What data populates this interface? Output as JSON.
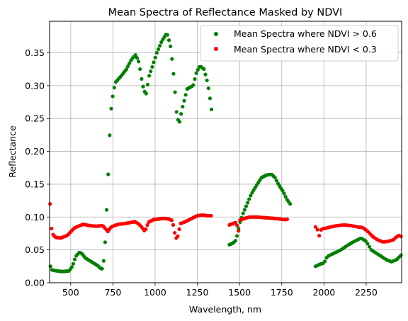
{
  "chart_data": {
    "type": "scatter",
    "title": "Mean Spectra of Reflectance Masked by NDVI",
    "xlabel": "Wavelength, nm",
    "ylabel": "Reflectance",
    "xlim": [
      375,
      2460
    ],
    "ylim": [
      0.0,
      0.398
    ],
    "x_ticks": [
      500,
      750,
      1000,
      1250,
      1500,
      1750,
      2000,
      2250
    ],
    "y_ticks": [
      0.0,
      0.05,
      0.1,
      0.15,
      0.2,
      0.25,
      0.3,
      0.35
    ],
    "x_tick_labels": [
      "500",
      "750",
      "1000",
      "1250",
      "1500",
      "1750",
      "2000",
      "2250"
    ],
    "y_tick_labels": [
      "0.00",
      "0.05",
      "0.10",
      "0.15",
      "0.20",
      "0.25",
      "0.30",
      "0.35"
    ],
    "grid": true,
    "legend_position": "top-right",
    "series": [
      {
        "name": "Mean Spectra where NDVI > 0.6",
        "color": "#008000",
        "segments": [
          {
            "range": [
              380,
              1335
            ],
            "step": 9,
            "points": [
              [
                380,
                0.025
              ],
              [
                385,
                0.02
              ],
              [
                395,
                0.019
              ],
              [
                420,
                0.018
              ],
              [
                450,
                0.017
              ],
              [
                490,
                0.018
              ],
              [
                510,
                0.025
              ],
              [
                530,
                0.04
              ],
              [
                550,
                0.046
              ],
              [
                565,
                0.045
              ],
              [
                585,
                0.038
              ],
              [
                610,
                0.034
              ],
              [
                635,
                0.03
              ],
              [
                660,
                0.026
              ],
              [
                685,
                0.02
              ],
              [
                700,
                0.04
              ],
              [
                712,
                0.105
              ],
              [
                722,
                0.165
              ],
              [
                730,
                0.22
              ],
              [
                740,
                0.265
              ],
              [
                752,
                0.29
              ],
              [
                765,
                0.305
              ],
              [
                800,
                0.315
              ],
              [
                830,
                0.325
              ],
              [
                860,
                0.34
              ],
              [
                885,
                0.347
              ],
              [
                905,
                0.335
              ],
              [
                925,
                0.302
              ],
              [
                945,
                0.285
              ],
              [
                965,
                0.315
              ],
              [
                985,
                0.33
              ],
              [
                1010,
                0.35
              ],
              [
                1040,
                0.368
              ],
              [
                1070,
                0.38
              ],
              [
                1090,
                0.362
              ],
              [
                1105,
                0.33
              ],
              [
                1115,
                0.3
              ],
              [
                1130,
                0.25
              ],
              [
                1145,
                0.245
              ],
              [
                1160,
                0.265
              ],
              [
                1190,
                0.295
              ],
              [
                1225,
                0.3
              ],
              [
                1245,
                0.32
              ],
              [
                1265,
                0.33
              ],
              [
                1290,
                0.325
              ],
              [
                1310,
                0.305
              ],
              [
                1320,
                0.29
              ],
              [
                1335,
                0.262
              ]
            ]
          },
          {
            "range": [
              1440,
              1800
            ],
            "step": 9,
            "points": [
              [
                1440,
                0.058
              ],
              [
                1460,
                0.06
              ],
              [
                1480,
                0.065
              ],
              [
                1500,
                0.09
              ],
              [
                1520,
                0.105
              ],
              [
                1545,
                0.12
              ],
              [
                1570,
                0.135
              ],
              [
                1600,
                0.148
              ],
              [
                1630,
                0.16
              ],
              [
                1660,
                0.164
              ],
              [
                1690,
                0.165
              ],
              [
                1710,
                0.16
              ],
              [
                1730,
                0.15
              ],
              [
                1760,
                0.138
              ],
              [
                1780,
                0.127
              ],
              [
                1800,
                0.12
              ]
            ]
          },
          {
            "range": [
              1950,
              2460
            ],
            "step": 11,
            "points": [
              [
                1950,
                0.025
              ],
              [
                1975,
                0.028
              ],
              [
                2000,
                0.03
              ],
              [
                2020,
                0.04
              ],
              [
                2060,
                0.045
              ],
              [
                2100,
                0.05
              ],
              [
                2140,
                0.057
              ],
              [
                2180,
                0.063
              ],
              [
                2220,
                0.068
              ],
              [
                2250,
                0.063
              ],
              [
                2280,
                0.05
              ],
              [
                2310,
                0.045
              ],
              [
                2340,
                0.04
              ],
              [
                2370,
                0.035
              ],
              [
                2400,
                0.032
              ],
              [
                2430,
                0.035
              ],
              [
                2460,
                0.043
              ]
            ]
          }
        ]
      },
      {
        "name": "Mean Spectra where NDVI < 0.3",
        "color": "#ff0000",
        "segments": [
          {
            "range": [
              378,
              1335
            ],
            "step": 9,
            "points": [
              [
                378,
                0.12
              ],
              [
                382,
                0.095
              ],
              [
                390,
                0.075
              ],
              [
                410,
                0.069
              ],
              [
                440,
                0.068
              ],
              [
                480,
                0.072
              ],
              [
                520,
                0.083
              ],
              [
                545,
                0.086
              ],
              [
                575,
                0.089
              ],
              [
                610,
                0.087
              ],
              [
                650,
                0.086
              ],
              [
                690,
                0.087
              ],
              [
                720,
                0.078
              ],
              [
                740,
                0.085
              ],
              [
                780,
                0.089
              ],
              [
                820,
                0.09
              ],
              [
                860,
                0.092
              ],
              [
                880,
                0.093
              ],
              [
                900,
                0.09
              ],
              [
                920,
                0.085
              ],
              [
                940,
                0.078
              ],
              [
                960,
                0.092
              ],
              [
                990,
                0.096
              ],
              [
                1020,
                0.097
              ],
              [
                1050,
                0.098
              ],
              [
                1080,
                0.097
              ],
              [
                1100,
                0.095
              ],
              [
                1110,
                0.085
              ],
              [
                1120,
                0.07
              ],
              [
                1130,
                0.066
              ],
              [
                1150,
                0.09
              ],
              [
                1180,
                0.093
              ],
              [
                1210,
                0.097
              ],
              [
                1250,
                0.102
              ],
              [
                1280,
                0.103
              ],
              [
                1310,
                0.102
              ],
              [
                1335,
                0.102
              ]
            ]
          },
          {
            "range": [
              1440,
              1790
            ],
            "step": 9,
            "points": [
              [
                1440,
                0.088
              ],
              [
                1460,
                0.09
              ],
              [
                1480,
                0.092
              ],
              [
                1495,
                0.078
              ],
              [
                1500,
                0.095
              ],
              [
                1530,
                0.098
              ],
              [
                1560,
                0.1
              ],
              [
                1600,
                0.1
              ],
              [
                1650,
                0.099
              ],
              [
                1700,
                0.098
              ],
              [
                1740,
                0.097
              ],
              [
                1770,
                0.096
              ],
              [
                1790,
                0.097
              ]
            ]
          },
          {
            "range": [
              1950,
              2460
            ],
            "step": 11,
            "points": [
              [
                1950,
                0.085
              ],
              [
                1960,
                0.082
              ],
              [
                1970,
                0.07
              ],
              [
                1985,
                0.082
              ],
              [
                2010,
                0.083
              ],
              [
                2040,
                0.085
              ],
              [
                2080,
                0.087
              ],
              [
                2120,
                0.088
              ],
              [
                2160,
                0.087
              ],
              [
                2200,
                0.085
              ],
              [
                2230,
                0.084
              ],
              [
                2260,
                0.078
              ],
              [
                2290,
                0.07
              ],
              [
                2320,
                0.065
              ],
              [
                2350,
                0.062
              ],
              [
                2380,
                0.063
              ],
              [
                2410,
                0.065
              ],
              [
                2430,
                0.07
              ],
              [
                2445,
                0.072
              ],
              [
                2460,
                0.07
              ]
            ]
          }
        ]
      }
    ]
  }
}
